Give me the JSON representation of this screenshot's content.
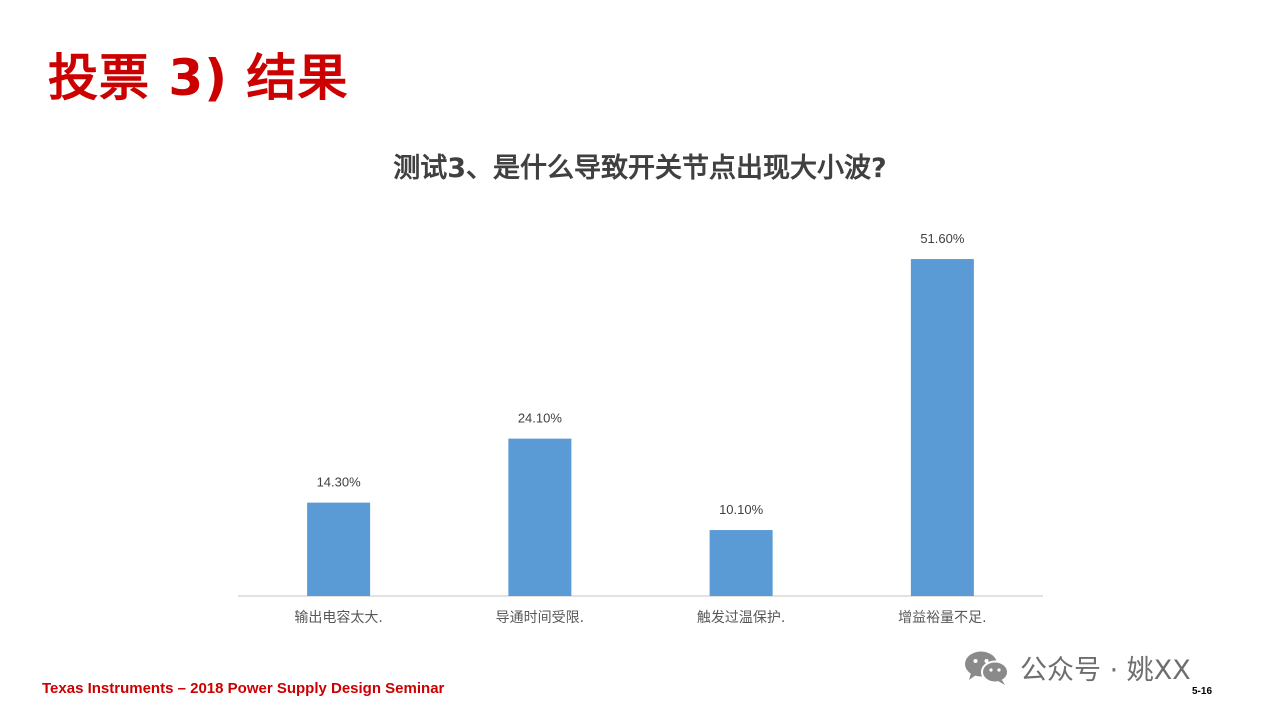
{
  "slide": {
    "title": "投票 3) 结果",
    "footer": "Texas Instruments – 2018 Power Supply Design Seminar",
    "page_number": "5-16"
  },
  "watermark": {
    "text": "公众号 · 姚XX",
    "icon": "wechat-icon"
  },
  "colors": {
    "title": "#cc0000",
    "bar": "#5b9bd5",
    "axis": "#d9d9d9"
  },
  "chart_data": {
    "type": "bar",
    "title": "测试3、是什么导致开关节点出现大小波?",
    "categories": [
      "输出电容太大.",
      "导通时间受限.",
      "触发过温保护.",
      "增益裕量不足."
    ],
    "values": [
      14.3,
      24.1,
      10.1,
      51.6
    ],
    "value_labels": [
      "14.30%",
      "24.10%",
      "10.10%",
      "51.60%"
    ],
    "ylim": [
      0,
      60
    ],
    "xlabel": "",
    "ylabel": "",
    "grid": false,
    "legend": "none"
  }
}
